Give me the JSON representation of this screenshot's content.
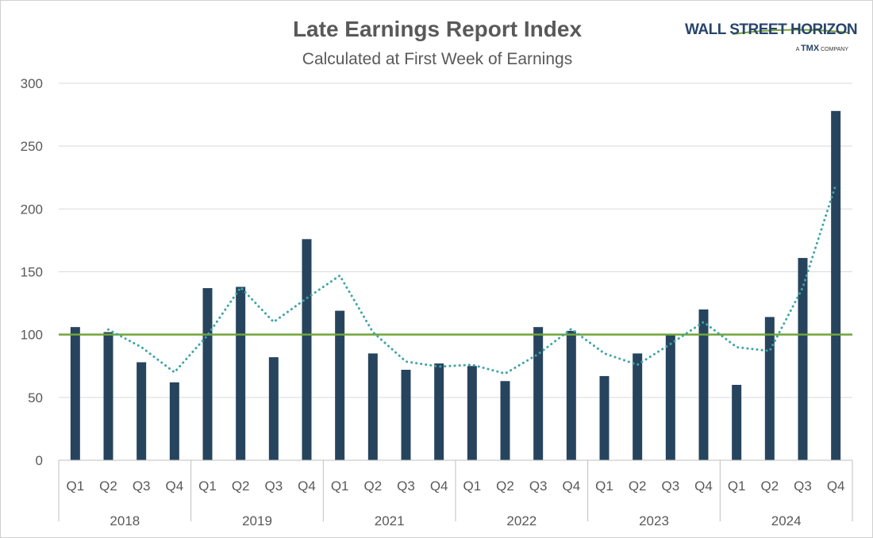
{
  "chart_data": {
    "type": "bar",
    "title": "Late Earnings Report Index",
    "subtitle": "Calculated at First Week of Earnings",
    "groups": [
      {
        "label": "2018",
        "categories": [
          "Q1",
          "Q2",
          "Q3",
          "Q4"
        ]
      },
      {
        "label": "2019",
        "categories": [
          "Q1",
          "Q2",
          "Q3",
          "Q4"
        ]
      },
      {
        "label": "2021",
        "categories": [
          "Q1",
          "Q2",
          "Q3",
          "Q4"
        ]
      },
      {
        "label": "2022",
        "categories": [
          "Q1",
          "Q2",
          "Q3",
          "Q4"
        ]
      },
      {
        "label": "2023",
        "categories": [
          "Q1",
          "Q2",
          "Q3",
          "Q4"
        ]
      },
      {
        "label": "2024",
        "categories": [
          "Q1",
          "Q2",
          "Q3",
          "Q4"
        ]
      }
    ],
    "values": [
      106,
      102,
      78,
      62,
      137,
      138,
      82,
      176,
      119,
      85,
      72,
      77,
      75,
      63,
      106,
      103,
      67,
      85,
      100,
      120,
      60,
      114,
      161,
      278
    ],
    "trendline": {
      "style": "dotted",
      "color": "#3fa4a6",
      "values": [
        null,
        104,
        90,
        70,
        99.5,
        137.5,
        110,
        129,
        147,
        102,
        78.5,
        74.5,
        76,
        69,
        84.5,
        104.5,
        85,
        76,
        92.5,
        110,
        90,
        87,
        137.5,
        219.5
      ]
    },
    "reference_line": {
      "value": 100,
      "color": "#70a53a"
    },
    "ylim": [
      0,
      300
    ],
    "yticks": [
      0,
      50,
      100,
      150,
      200,
      250,
      300
    ],
    "grid": true,
    "legend": "none",
    "bar_color": "#27445e"
  },
  "logo": {
    "name": "WALL STREET HORIZON",
    "tagline_prefix": "A",
    "tagline_brand": "TMX",
    "tagline_suffix": "COMPANY"
  }
}
